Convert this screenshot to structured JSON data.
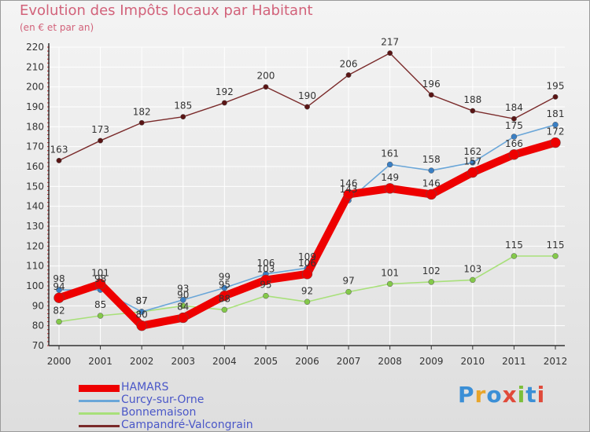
{
  "title": "Evolution des Impôts locaux par Habitant",
  "subtitle": "(en € et par an)",
  "logo": {
    "text": "Proxiti",
    "letter_colors": [
      "#3b8fd6",
      "#e8a52a",
      "#3b8fd6",
      "#e04a3a",
      "#7cbf3a",
      "#3b8fd6",
      "#e04a3a"
    ]
  },
  "chart_data": {
    "type": "line",
    "title": "Evolution des Impôts locaux par Habitant",
    "subtitle": "(en € et par an)",
    "xlabel": "",
    "ylabel": "",
    "x": [
      "2000",
      "2001",
      "2002",
      "2003",
      "2004",
      "2005",
      "2006",
      "2007",
      "2008",
      "2009",
      "2010",
      "2011",
      "2012"
    ],
    "ylim": [
      70,
      220
    ],
    "yticks": [
      70,
      80,
      90,
      100,
      110,
      120,
      130,
      140,
      150,
      160,
      170,
      180,
      190,
      200,
      210,
      220
    ],
    "grid": true,
    "legend_position": "bottom-left",
    "series": [
      {
        "name": "Campandré-Valcongrain",
        "color": "#7a2a2a",
        "values": [
          163,
          173,
          182,
          185,
          192,
          200,
          190,
          206,
          217,
          196,
          188,
          184,
          195
        ],
        "labels": [
          "163",
          "173",
          "182",
          "185",
          "192",
          "200",
          "190",
          "206",
          "217",
          "196",
          "188",
          "184",
          "195"
        ]
      },
      {
        "name": "Bonnemaison",
        "color": "#a8e07a",
        "values": [
          82,
          85,
          87,
          90,
          88,
          95,
          92,
          97,
          101,
          102,
          103,
          115,
          115
        ],
        "labels": [
          "82",
          "85",
          "87",
          "90",
          "88",
          "95",
          "92",
          "97",
          "101",
          "102",
          "103",
          "115",
          "115"
        ]
      },
      {
        "name": "Curcy-sur-Orne",
        "color": "#6aa6d8",
        "values": [
          98,
          98,
          87,
          93,
          99,
          106,
          109,
          143,
          161,
          158,
          162,
          175,
          181
        ],
        "labels": [
          "98",
          "98",
          "87",
          "93",
          "99",
          "106",
          "109",
          "143",
          "161",
          "158",
          "162",
          "175",
          "181"
        ]
      },
      {
        "name": "HAMARS",
        "color": "#ee0000",
        "values": [
          94,
          101,
          80,
          84,
          95,
          103,
          106,
          146,
          149,
          146,
          157,
          166,
          172
        ],
        "labels": [
          "94",
          "101",
          "80",
          "84",
          "95",
          "103",
          "106",
          "146",
          "149",
          "146",
          "157",
          "166",
          "172"
        ]
      }
    ],
    "legend": [
      "HAMARS",
      "Curcy-sur-Orne",
      "Bonnemaison",
      "Campandré-Valcongrain"
    ]
  }
}
